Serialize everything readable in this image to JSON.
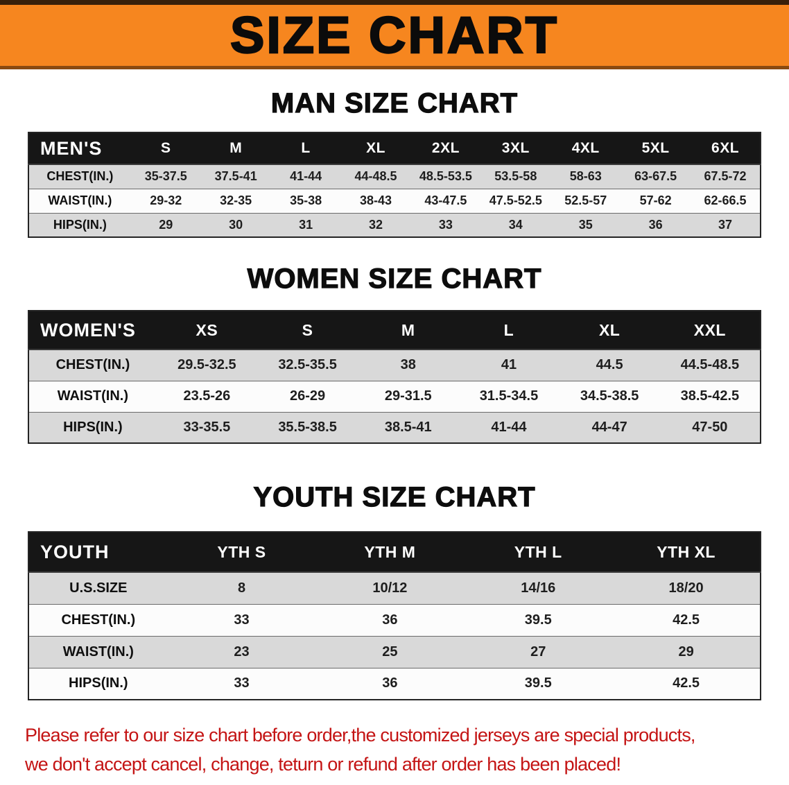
{
  "banner": {
    "title": "SIZE CHART"
  },
  "sections": [
    {
      "heading": "MAN SIZE CHART",
      "table": {
        "header": [
          "MEN'S",
          "S",
          "M",
          "L",
          "XL",
          "2XL",
          "3XL",
          "4XL",
          "5XL",
          "6XL"
        ],
        "rows": [
          [
            "CHEST(IN.)",
            "35-37.5",
            "37.5-41",
            "41-44",
            "44-48.5",
            "48.5-53.5",
            "53.5-58",
            "58-63",
            "63-67.5",
            "67.5-72"
          ],
          [
            "WAIST(IN.)",
            "29-32",
            "32-35",
            "35-38",
            "38-43",
            "43-47.5",
            "47.5-52.5",
            "52.5-57",
            "57-62",
            "62-66.5"
          ],
          [
            "HIPS(IN.)",
            "29",
            "30",
            "31",
            "32",
            "33",
            "34",
            "35",
            "36",
            "37"
          ]
        ]
      }
    },
    {
      "heading": "WOMEN SIZE CHART",
      "table": {
        "header": [
          "WOMEN'S",
          "XS",
          "S",
          "M",
          "L",
          "XL",
          "XXL"
        ],
        "rows": [
          [
            "CHEST(IN.)",
            "29.5-32.5",
            "32.5-35.5",
            "38",
            "41",
            "44.5",
            "44.5-48.5"
          ],
          [
            "WAIST(IN.)",
            "23.5-26",
            "26-29",
            "29-31.5",
            "31.5-34.5",
            "34.5-38.5",
            "38.5-42.5"
          ],
          [
            "HIPS(IN.)",
            "33-35.5",
            "35.5-38.5",
            "38.5-41",
            "41-44",
            "44-47",
            "47-50"
          ]
        ]
      }
    },
    {
      "heading": "YOUTH SIZE CHART",
      "table": {
        "header": [
          "YOUTH",
          "YTH S",
          "YTH M",
          "YTH L",
          "YTH XL"
        ],
        "rows": [
          [
            "U.S.SIZE",
            "8",
            "10/12",
            "14/16",
            "18/20"
          ],
          [
            "CHEST(IN.)",
            "33",
            "36",
            "39.5",
            "42.5"
          ],
          [
            "WAIST(IN.)",
            "23",
            "25",
            "27",
            "29"
          ],
          [
            "HIPS(IN.)",
            "33",
            "36",
            "39.5",
            "42.5"
          ]
        ]
      }
    }
  ],
  "footer": {
    "lines": [
      "Please refer to our size chart before order,the customized jerseys are special products,",
      "we don't accept cancel, change, teturn or refund after order has been placed!"
    ]
  },
  "colors": {
    "banner_orange": "#F6861F",
    "header_black": "#161616",
    "row_gray": "#D9D9D9",
    "row_white": "#FCFCFC",
    "notice_red": "#C41414"
  }
}
